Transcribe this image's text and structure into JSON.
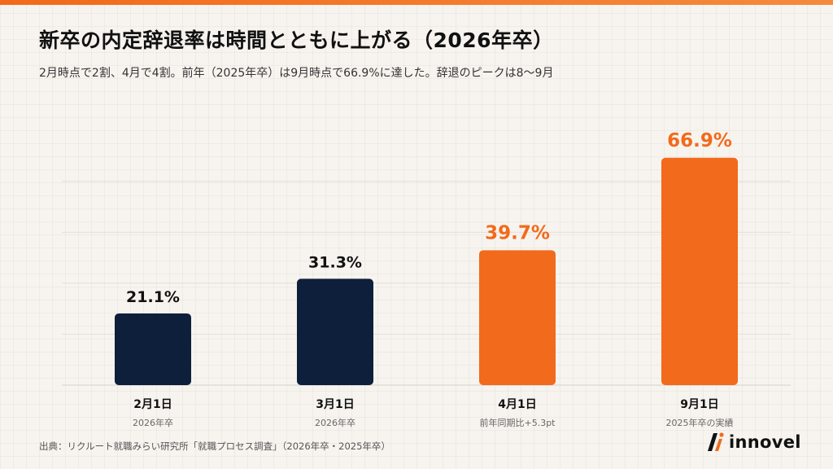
{
  "title": "新卒の内定辞退率は時間とともに上がる（2026年卒）",
  "subtitle": "2月時点で2割、4月で4割。前年（2025年卒）は9月時点で66.9%に達した。辞退のピークは8〜9月",
  "source": "出典：リクルート就職みらい研究所「就職プロセス調査」（2026年卒・2025年卒）",
  "brand": "innovel",
  "colors": {
    "navy": "#0e1f3b",
    "orange": "#f26a1b",
    "accent": "#f26a1b"
  },
  "chart_data": {
    "type": "bar",
    "title": "新卒の内定辞退率は時間とともに上がる（2026年卒）",
    "categories": [
      "2月1日",
      "3月1日",
      "4月1日",
      "9月1日"
    ],
    "sublabels": [
      "2026年卒",
      "2026年卒",
      "前年同期比+5.3pt",
      "2025年卒の実績"
    ],
    "values": [
      21.1,
      31.3,
      39.7,
      66.9
    ],
    "value_labels": [
      "21.1%",
      "31.3%",
      "39.7%",
      "66.9%"
    ],
    "bar_colors": [
      "#0e1f3b",
      "#0e1f3b",
      "#f26a1b",
      "#f26a1b"
    ],
    "ylim": [
      0,
      75
    ],
    "unit": "%",
    "grid": true,
    "xlabel": "",
    "ylabel": ""
  }
}
